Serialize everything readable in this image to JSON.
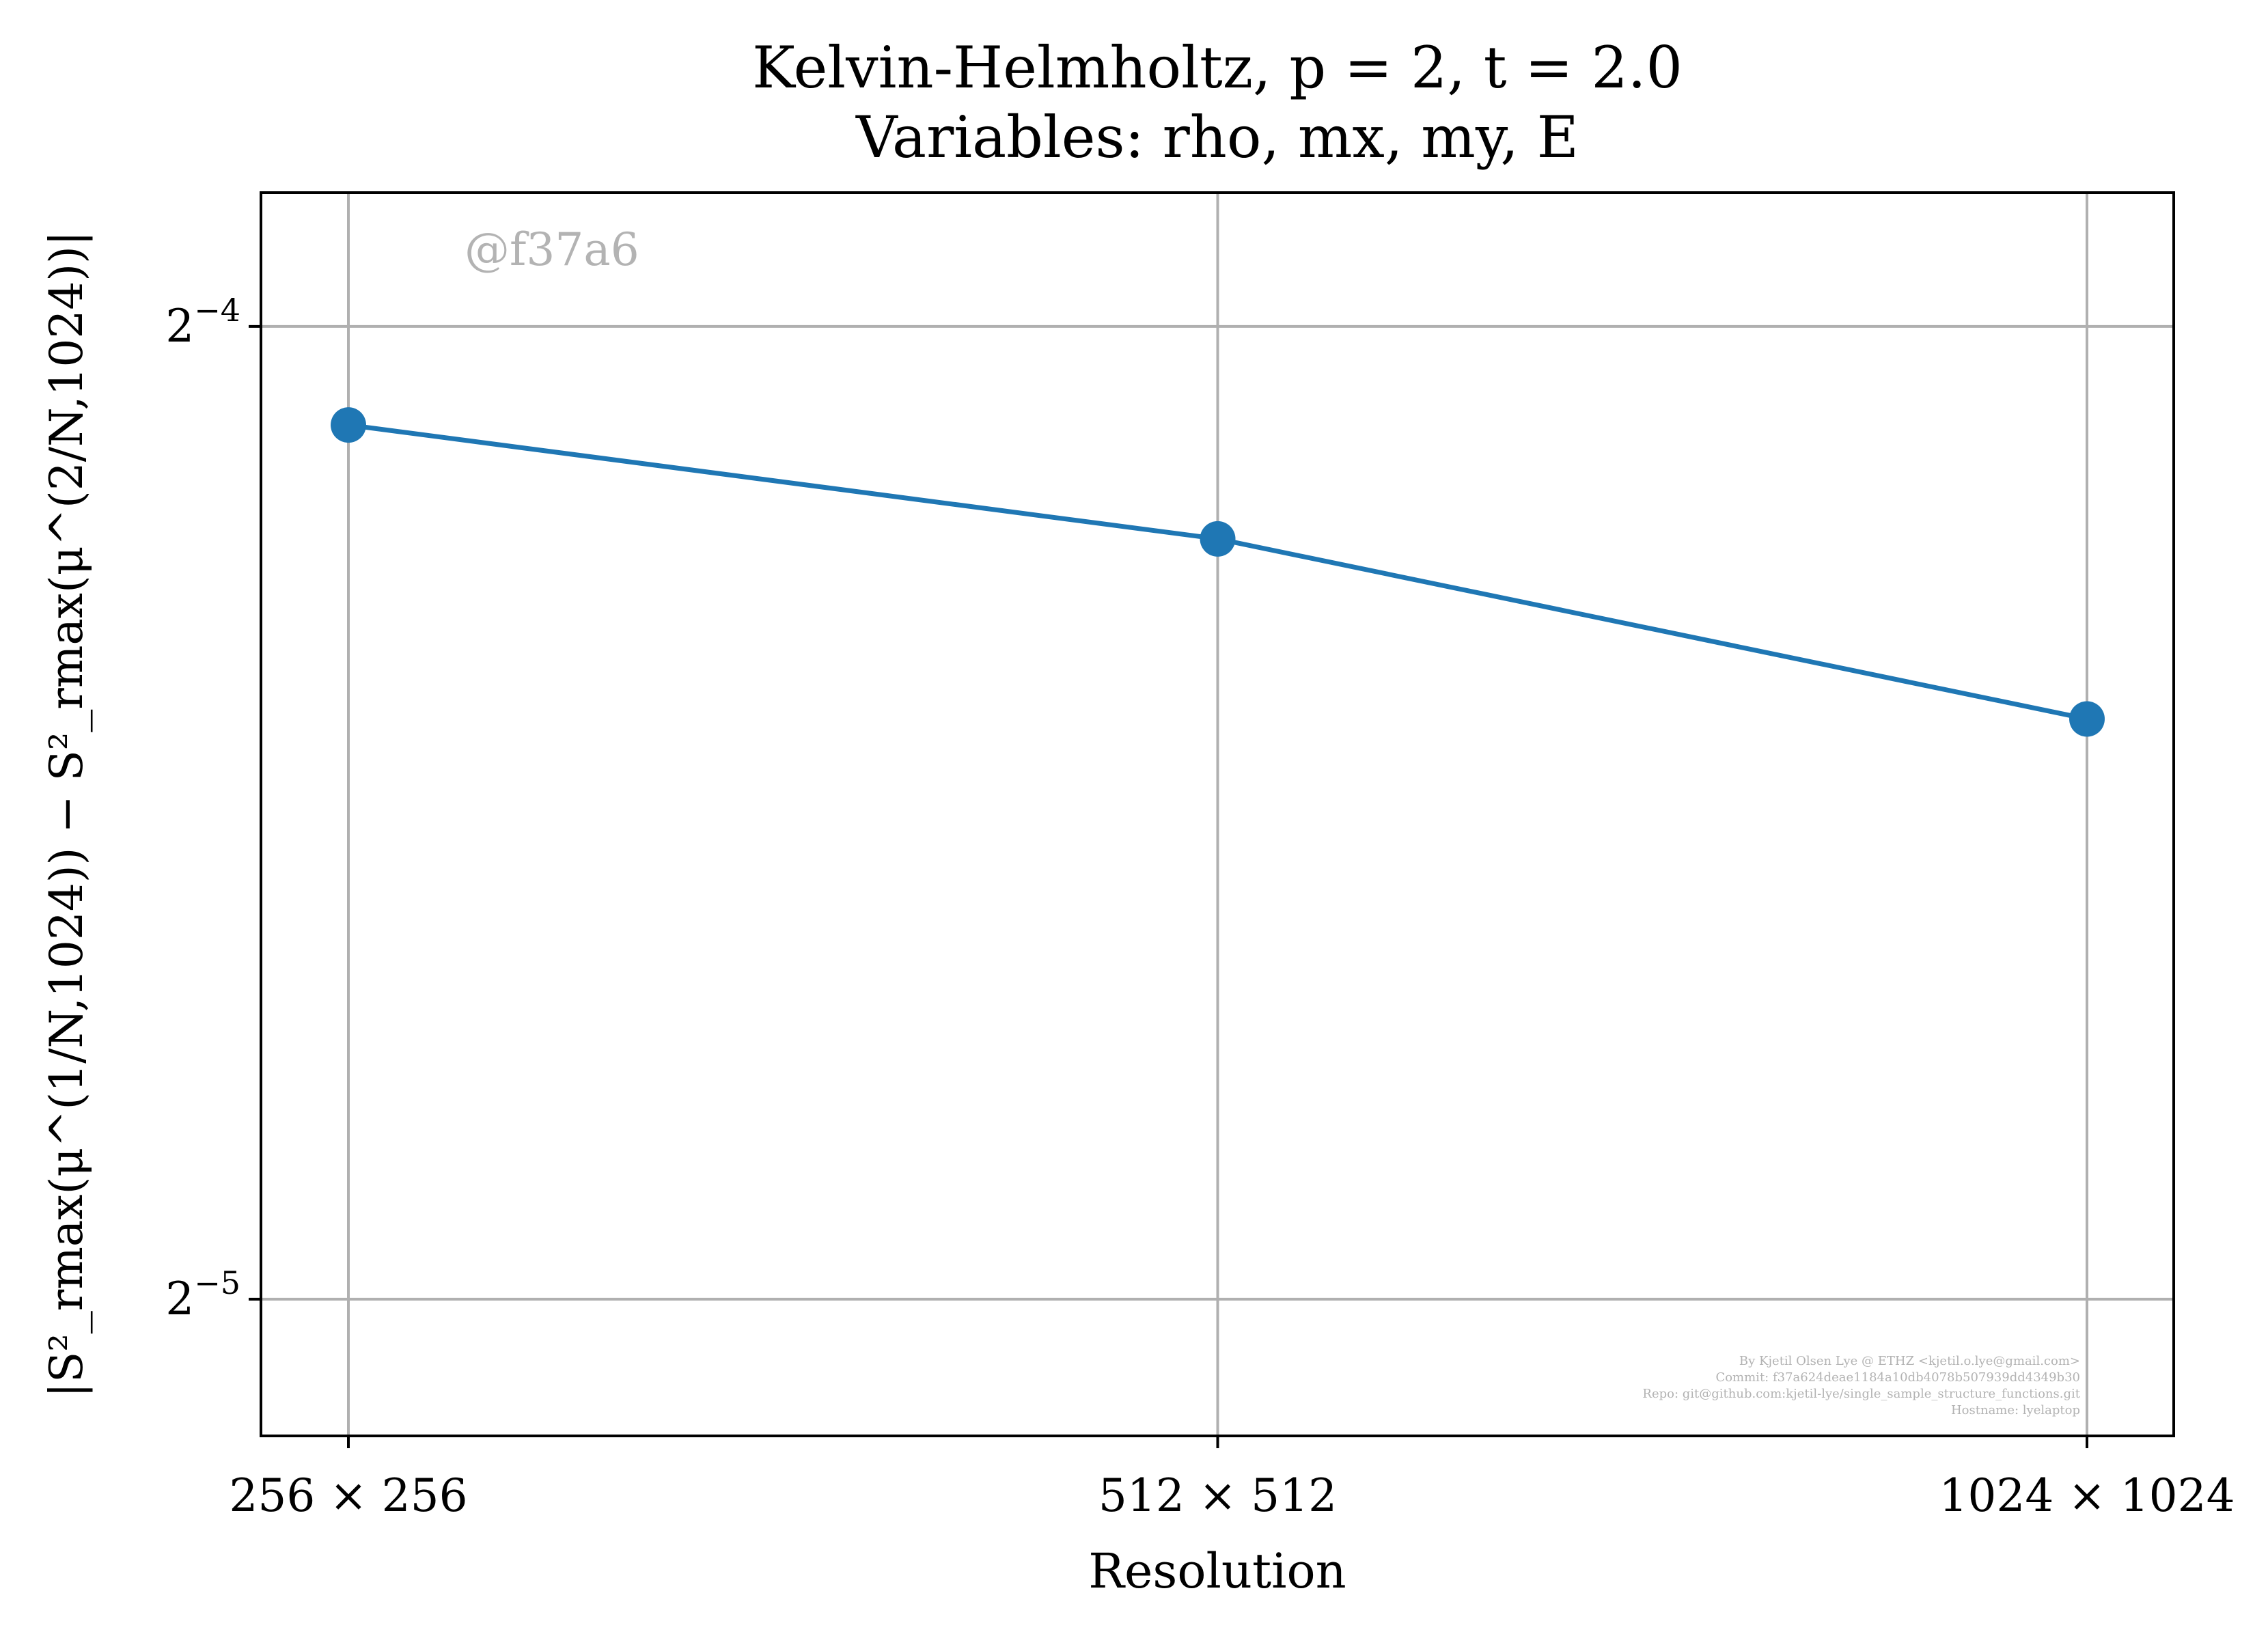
{
  "chart_data": {
    "type": "line",
    "title_lines": [
      "Kelvin-Helmholtz, p = 2, t = 2.0",
      "Variables: rho, mx, my, E"
    ],
    "xlabel": "Resolution",
    "ylabel": "|S²_rmax(μ^(1/N,1024)) − S²_rmax(μ^(2/N,1024))|",
    "categories": [
      "256 × 256",
      "512 × 512",
      "1024 × 1024"
    ],
    "y_scale": "log2",
    "y_ticks": [
      {
        "value": 0.0625,
        "base": "2",
        "exp": "−4"
      },
      {
        "value": 0.03125,
        "base": "2",
        "exp": "−5"
      }
    ],
    "ylim": [
      0.02835,
      0.06875
    ],
    "series": [
      {
        "values": [
          0.05826,
          0.05372,
          0.04725
        ],
        "color": "#1f77b4"
      }
    ],
    "grid": true,
    "watermark": "@f37a6",
    "credits": [
      "By Kjetil Olsen Lye @ ETHZ <kjetil.o.lye@gmail.com>",
      "Commit: f37a624deae1184a10db4078b507939dd4349b30",
      "Repo: git@github.com:kjetil-lye/single_sample_structure_functions.git",
      "Hostname: lyelaptop"
    ]
  }
}
